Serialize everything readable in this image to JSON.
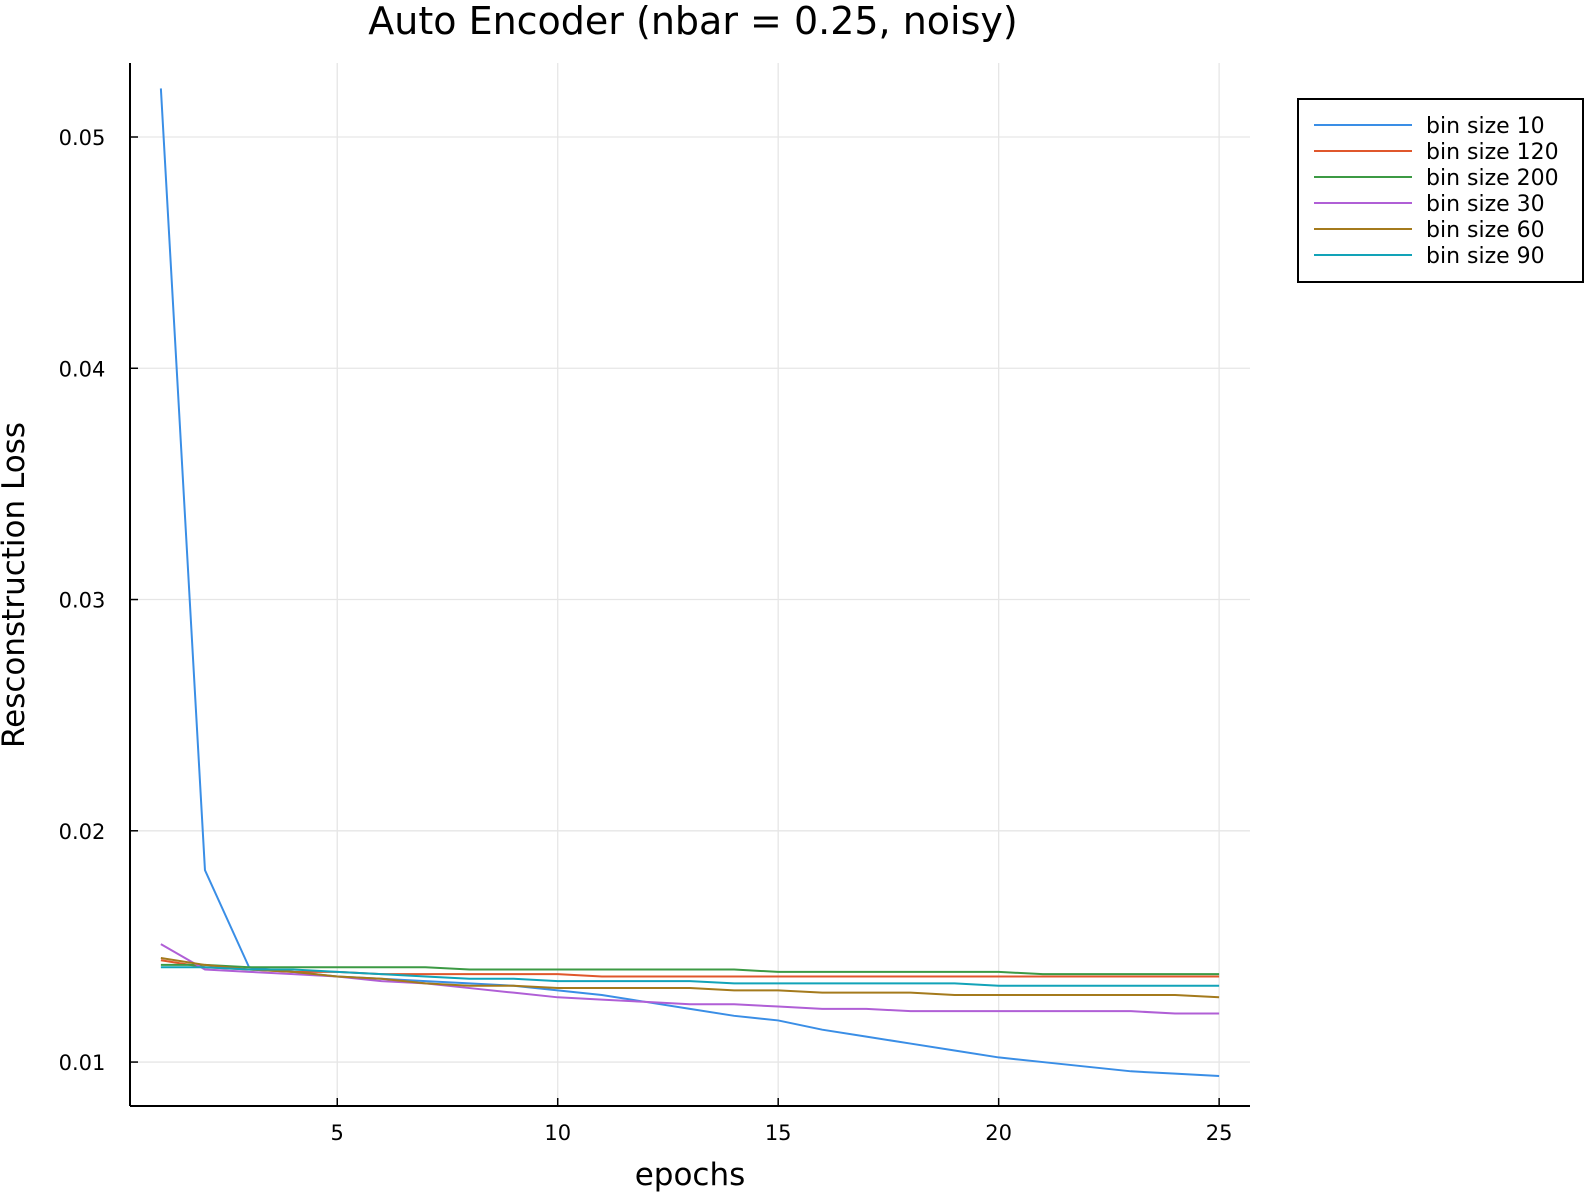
{
  "chart_data": {
    "type": "line",
    "title": "Auto Encoder (nbar = 0.25, noisy)",
    "xlabel": "epochs",
    "ylabel": "Resconstruction Loss",
    "xlim": [
      0.3,
      25.7
    ],
    "ylim": [
      0.0081,
      0.0532
    ],
    "xticks": [
      5,
      10,
      15,
      20,
      25
    ],
    "xtick_labels": [
      "5",
      "10",
      "15",
      "20",
      "25"
    ],
    "yticks": [
      0.01,
      0.02,
      0.03,
      0.04,
      0.05
    ],
    "ytick_labels": [
      "0.01",
      "0.02",
      "0.03",
      "0.04",
      "0.05"
    ],
    "grid": true,
    "legend_position": "top-right outside",
    "x": [
      1,
      2,
      3,
      4,
      5,
      6,
      7,
      8,
      9,
      10,
      11,
      12,
      13,
      14,
      15,
      16,
      17,
      18,
      19,
      20,
      21,
      22,
      23,
      24,
      25
    ],
    "series": [
      {
        "name": "bin size 10",
        "color": "#3a8ee6",
        "values": [
          0.0521,
          0.0183,
          0.0141,
          0.0139,
          0.0137,
          0.0136,
          0.0135,
          0.0134,
          0.0133,
          0.0131,
          0.0129,
          0.0126,
          0.0123,
          0.012,
          0.0118,
          0.0114,
          0.0111,
          0.0108,
          0.0105,
          0.0102,
          0.01,
          0.0098,
          0.0096,
          0.0095,
          0.0094
        ]
      },
      {
        "name": "bin size 120",
        "color": "#e0572c",
        "values": [
          0.0144,
          0.0141,
          0.014,
          0.0139,
          0.0139,
          0.0138,
          0.0138,
          0.0138,
          0.0138,
          0.0138,
          0.0137,
          0.0137,
          0.0137,
          0.0137,
          0.0137,
          0.0137,
          0.0137,
          0.0137,
          0.0137,
          0.0137,
          0.0137,
          0.0137,
          0.0137,
          0.0137,
          0.0137
        ]
      },
      {
        "name": "bin size 200",
        "color": "#3c9a44",
        "values": [
          0.0142,
          0.0142,
          0.0141,
          0.0141,
          0.0141,
          0.0141,
          0.0141,
          0.014,
          0.014,
          0.014,
          0.014,
          0.014,
          0.014,
          0.014,
          0.0139,
          0.0139,
          0.0139,
          0.0139,
          0.0139,
          0.0139,
          0.0138,
          0.0138,
          0.0138,
          0.0138,
          0.0138
        ]
      },
      {
        "name": "bin size 30",
        "color": "#b05fd6",
        "values": [
          0.0151,
          0.014,
          0.0139,
          0.0138,
          0.0137,
          0.0135,
          0.0134,
          0.0132,
          0.013,
          0.0128,
          0.0127,
          0.0126,
          0.0125,
          0.0125,
          0.0124,
          0.0123,
          0.0123,
          0.0122,
          0.0122,
          0.0122,
          0.0122,
          0.0122,
          0.0122,
          0.0121,
          0.0121
        ]
      },
      {
        "name": "bin size 60",
        "color": "#a47a1c",
        "values": [
          0.0145,
          0.0142,
          0.014,
          0.0139,
          0.0137,
          0.0136,
          0.0134,
          0.0133,
          0.0133,
          0.0132,
          0.0132,
          0.0132,
          0.0132,
          0.0131,
          0.0131,
          0.013,
          0.013,
          0.013,
          0.0129,
          0.0129,
          0.0129,
          0.0129,
          0.0129,
          0.0129,
          0.0128
        ]
      },
      {
        "name": "bin size 90",
        "color": "#12a3b8",
        "values": [
          0.0141,
          0.0141,
          0.014,
          0.014,
          0.0139,
          0.0138,
          0.0137,
          0.0136,
          0.0136,
          0.0135,
          0.0135,
          0.0135,
          0.0135,
          0.0134,
          0.0134,
          0.0134,
          0.0134,
          0.0134,
          0.0134,
          0.0133,
          0.0133,
          0.0133,
          0.0133,
          0.0133,
          0.0133
        ]
      }
    ]
  }
}
